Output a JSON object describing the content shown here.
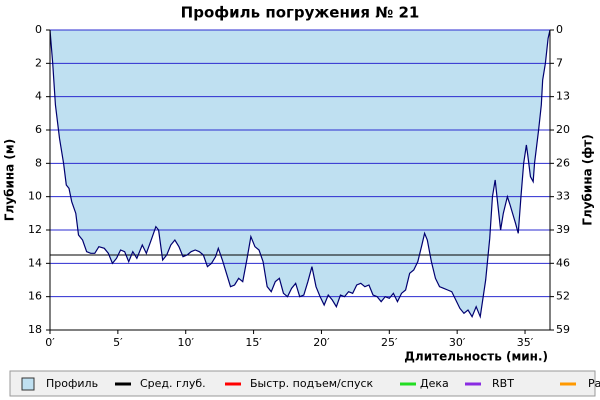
{
  "chart_data": {
    "type": "area",
    "title": "Профиль погружения № 21",
    "y_label": "Глубина (м)",
    "y2_label": "Глубина (фт)",
    "x_label": "Длительность (мин.)",
    "xlim": [
      0,
      36.84
    ],
    "xticks": [
      {
        "value": 0,
        "label": "0′"
      },
      {
        "value": 5,
        "label": "5′"
      },
      {
        "value": 10,
        "label": "10′"
      },
      {
        "value": 15,
        "label": "15′"
      },
      {
        "value": 20,
        "label": "20′"
      },
      {
        "value": 25,
        "label": "25′"
      },
      {
        "value": 30,
        "label": "30′"
      },
      {
        "value": 35,
        "label": "35′"
      }
    ],
    "ylim": [
      0,
      18
    ],
    "yticks": [
      0,
      2,
      4,
      6,
      8,
      10,
      12,
      14,
      16,
      18
    ],
    "y2lim": [
      0,
      59.06
    ],
    "y2ticks": [
      0,
      {
        "value": 6.56,
        "label": "7"
      },
      {
        "value": 13.12,
        "label": "13"
      },
      {
        "value": 19.69,
        "label": "20"
      },
      {
        "value": 26.25,
        "label": "26"
      },
      {
        "value": 32.81,
        "label": "33"
      },
      {
        "value": 39.37,
        "label": "39"
      },
      {
        "value": 45.93,
        "label": "46"
      },
      {
        "value": 52.49,
        "label": "52"
      },
      {
        "value": 59.06,
        "label": "59"
      }
    ],
    "y_inverted": true,
    "grid": true,
    "grid_color": "#2b2bd0",
    "x": [
      0,
      0.2,
      0.4,
      0.7,
      1.0,
      1.2,
      1.4,
      1.6,
      1.9,
      2.1,
      2.4,
      2.7,
      3.0,
      3.3,
      3.6,
      4.0,
      4.3,
      4.6,
      4.9,
      5.2,
      5.5,
      5.8,
      6.1,
      6.4,
      6.8,
      7.1,
      7.5,
      7.8,
      8.0,
      8.3,
      8.6,
      8.9,
      9.2,
      9.5,
      9.8,
      10.1,
      10.4,
      10.7,
      11.0,
      11.3,
      11.6,
      11.9,
      12.2,
      12.4,
      12.7,
      13.0,
      13.3,
      13.6,
      13.9,
      14.2,
      14.5,
      14.8,
      15.1,
      15.4,
      15.7,
      16.0,
      16.3,
      16.6,
      16.9,
      17.2,
      17.5,
      17.8,
      18.1,
      18.4,
      18.7,
      19.0,
      19.3,
      19.6,
      19.9,
      20.2,
      20.5,
      20.8,
      21.1,
      21.4,
      21.7,
      22.0,
      22.3,
      22.6,
      22.9,
      23.2,
      23.5,
      23.8,
      24.1,
      24.4,
      24.7,
      25.0,
      25.3,
      25.6,
      25.9,
      26.2,
      26.5,
      26.8,
      27.1,
      27.4,
      27.6,
      27.8,
      28.1,
      28.4,
      28.7,
      29.0,
      29.3,
      29.6,
      29.9,
      30.2,
      30.5,
      30.8,
      31.1,
      31.4,
      31.7,
      32.1,
      32.4,
      32.6,
      32.8,
      33.0,
      33.2,
      33.4,
      33.7,
      33.9,
      34.3,
      34.5,
      34.7,
      34.9,
      35.1,
      35.2,
      35.4,
      35.6,
      35.7,
      36.0,
      36.2,
      36.3,
      36.5,
      36.7,
      36.84
    ],
    "series": [
      {
        "name": "Профиль",
        "color": "#bfe0f1",
        "line_color": "#000070",
        "values": [
          0,
          2,
          4.5,
          6.5,
          8,
          9.3,
          9.5,
          10.3,
          11,
          12.3,
          12.6,
          13.3,
          13.4,
          13.4,
          13,
          13.1,
          13.4,
          14,
          13.7,
          13.2,
          13.3,
          13.9,
          13.3,
          13.7,
          12.9,
          13.4,
          12.5,
          11.8,
          12,
          13.8,
          13.5,
          12.9,
          12.6,
          13,
          13.6,
          13.5,
          13.3,
          13.2,
          13.3,
          13.5,
          14.2,
          14,
          13.6,
          13.1,
          13.8,
          14.6,
          15.4,
          15.3,
          14.9,
          15.1,
          13.8,
          12.4,
          13,
          13.2,
          13.9,
          15.4,
          15.7,
          15.1,
          14.9,
          15.8,
          16,
          15.5,
          15.2,
          16,
          15.9,
          15.1,
          14.2,
          15.4,
          16,
          16.5,
          15.9,
          16.2,
          16.6,
          15.9,
          16,
          15.7,
          15.8,
          15.3,
          15.2,
          15.4,
          15.3,
          15.9,
          16,
          16.3,
          16,
          16.1,
          15.8,
          16.3,
          15.8,
          15.6,
          14.6,
          14.4,
          13.9,
          12.9,
          12.2,
          12.6,
          13.9,
          14.9,
          15.4,
          15.5,
          15.6,
          15.7,
          16.2,
          16.7,
          17,
          16.8,
          17.2,
          16.6,
          17.2,
          15,
          12.5,
          10,
          9,
          10.5,
          12,
          11,
          10,
          10.5,
          11.6,
          12.2,
          10,
          8,
          6.9,
          7.5,
          8.8,
          9.1,
          8,
          6,
          4.5,
          3,
          2,
          0.5,
          0
        ]
      }
    ],
    "avg_line": {
      "name": "Сред. глуб.",
      "color": "#000000",
      "value": 13.5
    },
    "other_legend": [
      {
        "name": "Быстр. подъем/спуск",
        "color": "#ff0000"
      },
      {
        "name": "Дека",
        "color": "#22dd22"
      },
      {
        "name": "RBT",
        "color": "#8a2be2"
      },
      {
        "name": "Раб.",
        "color": "#ff9900"
      }
    ]
  }
}
